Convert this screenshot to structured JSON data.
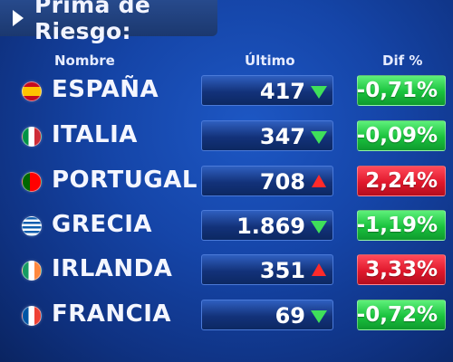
{
  "title": "Prima de Riesgo:",
  "headers": {
    "name": "Nombre",
    "last": "Último",
    "dif": "Dif %"
  },
  "rows": [
    {
      "country": "ESPAÑA",
      "flag": "spain-flag-icon",
      "last": "417",
      "trend": "down",
      "dif": "-0,71%"
    },
    {
      "country": "ITALIA",
      "flag": "italy-flag-icon",
      "last": "347",
      "trend": "down",
      "dif": "-0,09%"
    },
    {
      "country": "PORTUGAL",
      "flag": "portugal-flag-icon",
      "last": "708",
      "trend": "up",
      "dif": "2,24%"
    },
    {
      "country": "GRECIA",
      "flag": "greece-flag-icon",
      "last": "1.869",
      "trend": "down",
      "dif": "-1,19%"
    },
    {
      "country": "IRLANDA",
      "flag": "ireland-flag-icon",
      "last": "351",
      "trend": "up",
      "dif": "3,33%"
    },
    {
      "country": "FRANCIA",
      "flag": "france-flag-icon",
      "last": "69",
      "trend": "down",
      "dif": "-0,72%"
    }
  ],
  "colors": {
    "down": "#3fe05a",
    "up": "#ff2a2a",
    "negBox": "#19c23d",
    "posBox": "#e0182c"
  }
}
